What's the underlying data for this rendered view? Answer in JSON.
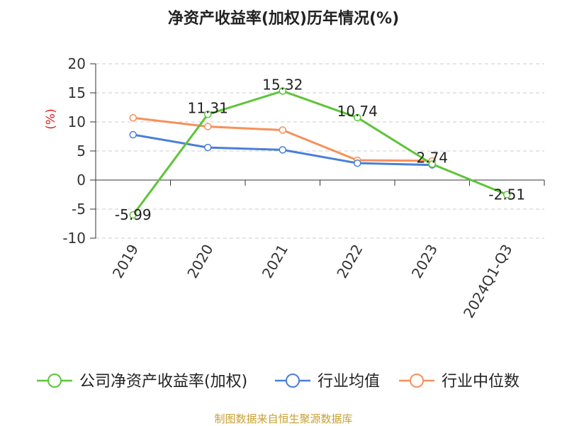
{
  "chart_data": {
    "type": "line",
    "title": "净资产收益率(加权)历年情况(%)",
    "ylabel": "(%)",
    "xlabel": "",
    "ylim": [
      -10,
      20
    ],
    "yticks": [
      20,
      15,
      10,
      5,
      0,
      -5,
      -10
    ],
    "categories": [
      "2019",
      "2020",
      "2021",
      "2022",
      "2023",
      "2024Q1-Q3"
    ],
    "grid": true,
    "legend_position": "bottom",
    "series": [
      {
        "name": "公司净资产收益率(加权)",
        "color": "#5ec43a",
        "values": [
          -5.99,
          11.31,
          15.32,
          10.74,
          2.74,
          -2.51
        ],
        "labels": [
          "-5.99",
          "11.31",
          "15.32",
          "10.74",
          "2.74",
          "-2.51"
        ]
      },
      {
        "name": "行业均值",
        "color": "#4a7fd6",
        "values": [
          7.8,
          5.6,
          5.2,
          2.9,
          2.6,
          null
        ]
      },
      {
        "name": "行业中位数",
        "color": "#f7905a",
        "values": [
          10.7,
          9.2,
          8.6,
          3.4,
          3.3,
          null
        ]
      }
    ]
  },
  "source": "制图数据来自恒生聚源数据库"
}
